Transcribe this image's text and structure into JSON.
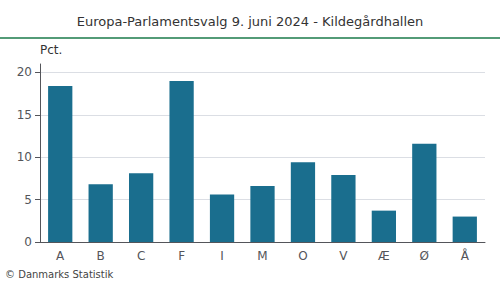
{
  "chart_data": {
    "type": "bar",
    "title": "Europa-Parlamentsvalg 9. juni 2024 - Kildegårdhallen",
    "ylabel": "Pct.",
    "annotations": [
      "© Danmarks Statistik"
    ],
    "categories": [
      "A",
      "B",
      "C",
      "F",
      "I",
      "M",
      "O",
      "V",
      "Æ",
      "Ø",
      "Å"
    ],
    "values": [
      18.4,
      6.8,
      8.1,
      19.0,
      5.6,
      6.6,
      9.4,
      7.9,
      3.7,
      11.6,
      3.0
    ],
    "color": "#1a6e8e",
    "ylim": [
      0,
      21
    ],
    "yticks": [
      0,
      5,
      10,
      15,
      20
    ],
    "grid": true
  }
}
